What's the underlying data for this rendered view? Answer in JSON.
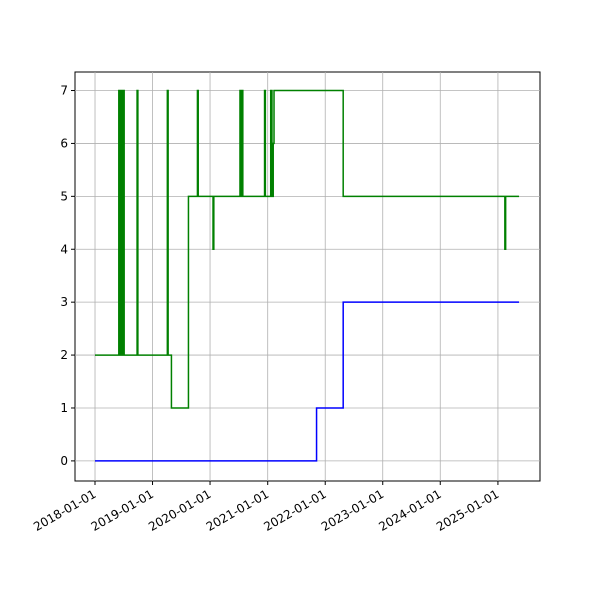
{
  "chart_data": {
    "type": "step",
    "xlim": [
      "2017-08-27",
      "2025-09-25"
    ],
    "ylim": [
      -0.38,
      7.35
    ],
    "xticks": [
      "2018-01-01",
      "2019-01-01",
      "2020-01-01",
      "2021-01-01",
      "2022-01-01",
      "2023-01-01",
      "2024-01-01",
      "2025-01-01"
    ],
    "yticks": [
      0,
      1,
      2,
      3,
      4,
      5,
      6,
      7
    ],
    "grid": true,
    "series": [
      {
        "color": "#0000ff",
        "x": [
          "2018-01-01",
          "2021-11-07",
          "2022-04-25",
          "2025-05-15"
        ],
        "values": [
          0,
          1,
          3,
          3
        ]
      },
      {
        "color": "#008000",
        "x": [
          "2018-01-01",
          "2018-06-01",
          "2018-06-08",
          "2018-06-15",
          "2018-06-22",
          "2018-06-28",
          "2018-07-05",
          "2018-09-25",
          "2018-09-30",
          "2019-04-05",
          "2019-04-10",
          "2019-05-01",
          "2019-08-17",
          "2019-10-13",
          "2019-10-18",
          "2020-01-20",
          "2020-01-25",
          "2020-07-09",
          "2020-07-14",
          "2020-07-22",
          "2020-07-27",
          "2020-12-12",
          "2020-12-17",
          "2021-01-20",
          "2021-01-28",
          "2021-02-05",
          "2021-02-10",
          "2022-04-25",
          "2025-02-14",
          "2025-02-19",
          "2025-05-15"
        ],
        "values": [
          2,
          7,
          2,
          7,
          2,
          7,
          2,
          7,
          2,
          7,
          2,
          1,
          5,
          7,
          5,
          4,
          5,
          7,
          5,
          7,
          5,
          7,
          5,
          7,
          5,
          6,
          7,
          5,
          4,
          5,
          5
        ]
      }
    ]
  }
}
